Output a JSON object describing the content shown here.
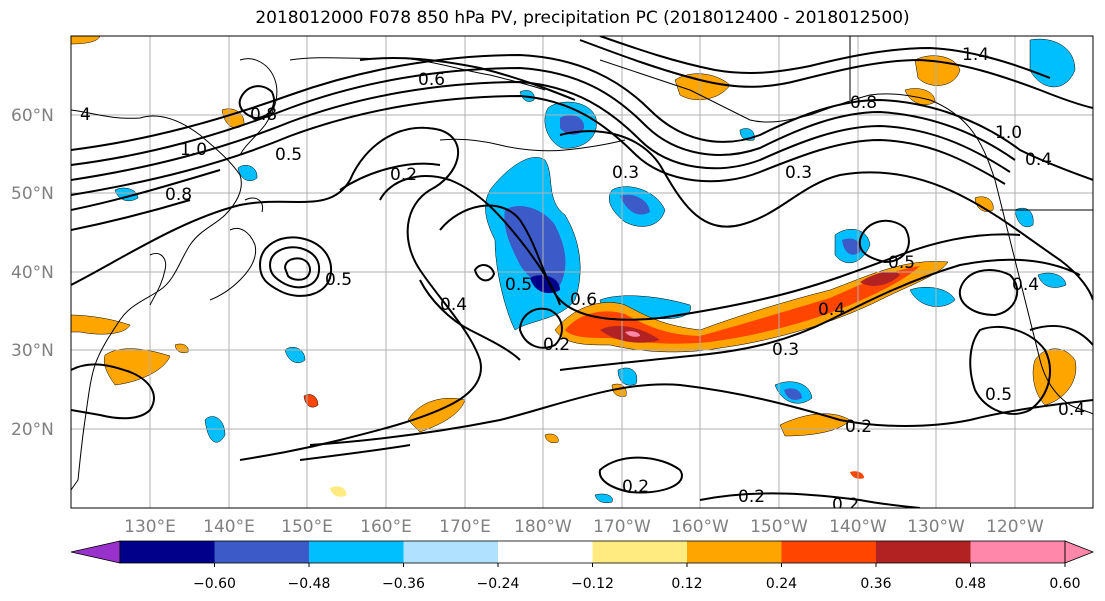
{
  "title": "2018012000 F078 850 hPa PV, precipitation PC (2018012400 - 2018012500)",
  "map": {
    "lat_labels": [
      "60°N",
      "50°N",
      "40°N",
      "30°N",
      "20°N"
    ],
    "lon_labels": [
      "130°E",
      "140°E",
      "150°E",
      "160°E",
      "170°E",
      "180°W",
      "170°W",
      "160°W",
      "150°W",
      "140°W",
      "130°W",
      "120°W"
    ],
    "contour_labels": [
      "4",
      "1.0",
      "0.8",
      "0.5",
      "0.2",
      "0.6",
      "0.8",
      "0.3",
      "0.3",
      "1.4",
      "0.8",
      "1.0",
      "0.4",
      "0.5",
      "0.4",
      "0.5",
      "0.6",
      "0.4",
      "0.3",
      "0.2",
      "0.5",
      "0.4",
      "0.2",
      "0.2",
      "0.2",
      "0.2",
      "0.4",
      "0.5"
    ]
  },
  "colorbar": {
    "ticks": [
      "−0.60",
      "−0.48",
      "−0.36",
      "−0.24",
      "−0.12",
      "0.12",
      "0.24",
      "0.36",
      "0.48",
      "0.60"
    ],
    "colors": [
      "#9932cc",
      "#00008b",
      "#3c5ac8",
      "#00bfff",
      "#b0e2ff",
      "#ffffff",
      "#ffeb80",
      "#ffa500",
      "#ff4500",
      "#b22222",
      "#ff88aa",
      "#ffffff"
    ]
  },
  "colors": {
    "contour": "#000000",
    "coast": "#000000",
    "grid": "#b0b0b0"
  }
}
